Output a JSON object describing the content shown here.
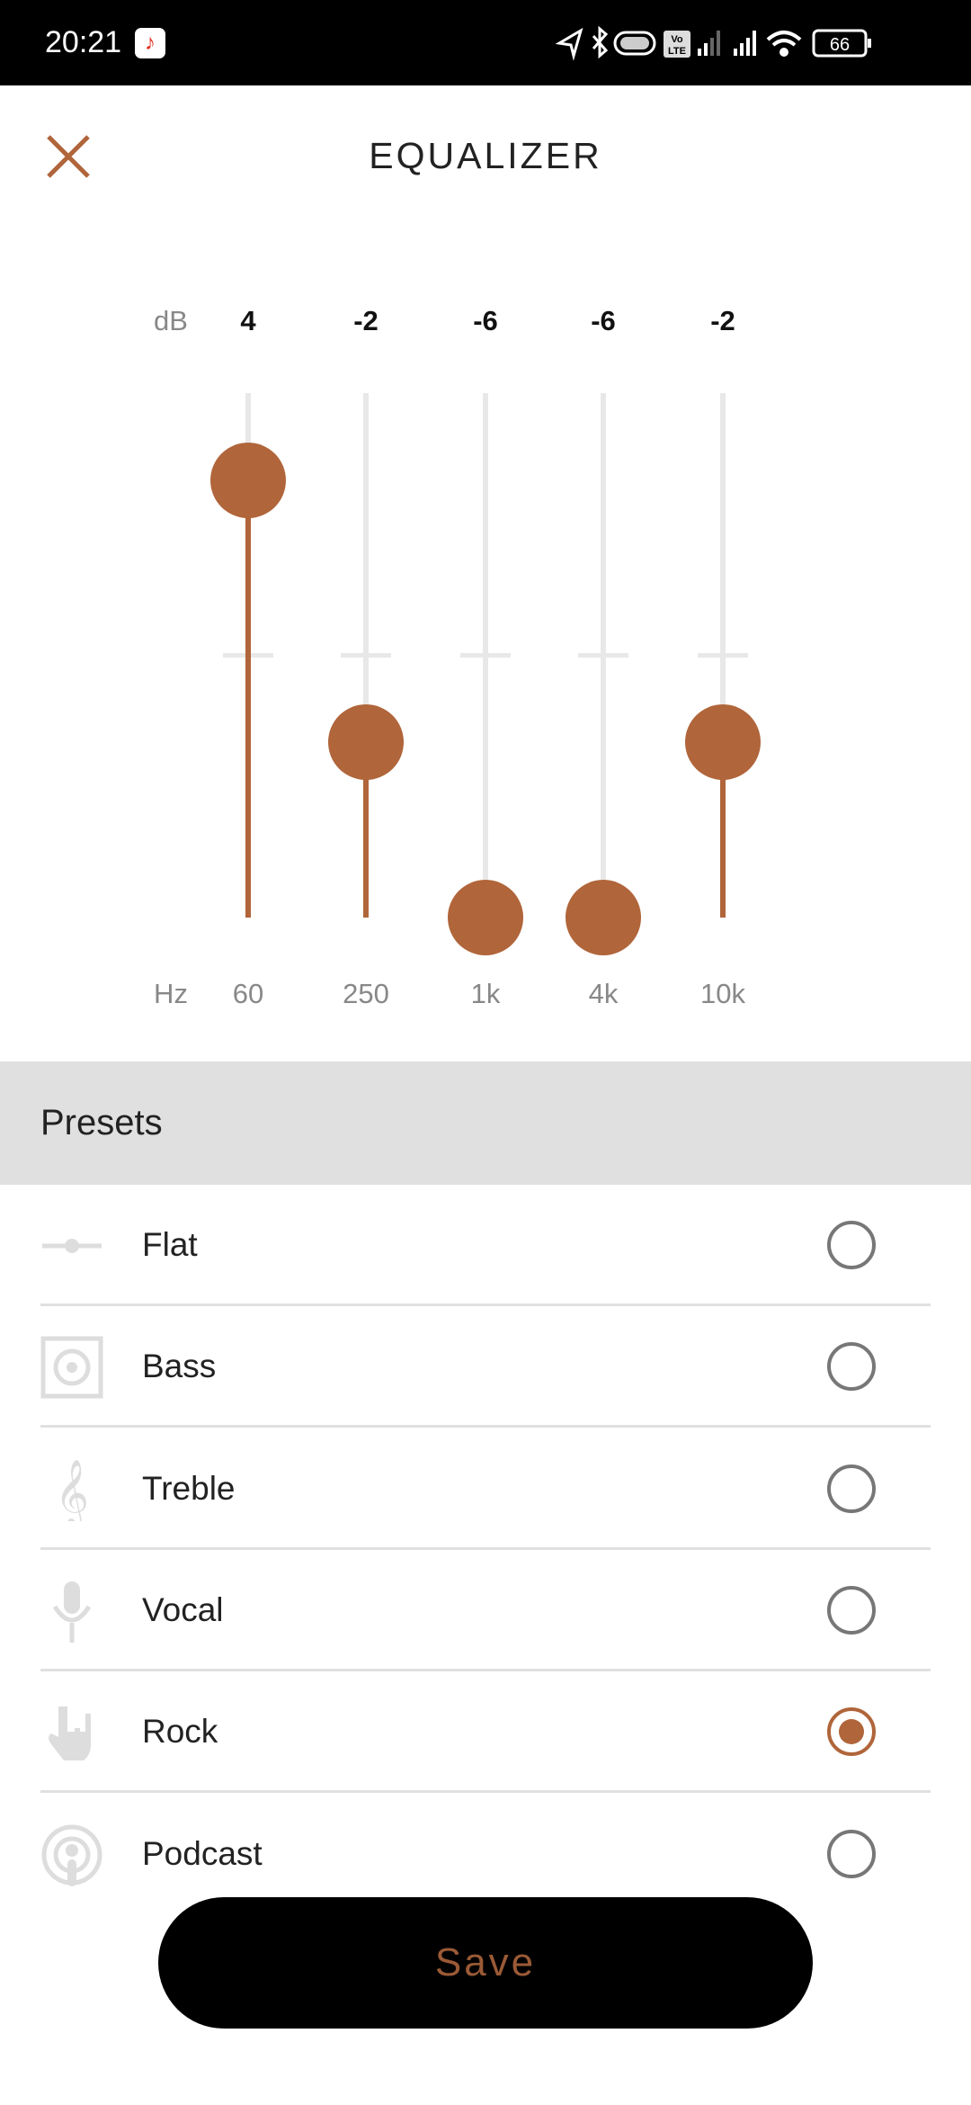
{
  "status_bar": {
    "time": "20:21",
    "battery": "66"
  },
  "header": {
    "title": "EQUALIZER"
  },
  "equalizer": {
    "db_unit": "dB",
    "hz_unit": "Hz",
    "range_db": [
      -6,
      6
    ],
    "accent": "#b0653a",
    "bands": [
      {
        "freq": "60",
        "gain": 4,
        "gain_label": "4"
      },
      {
        "freq": "250",
        "gain": -2,
        "gain_label": "-2"
      },
      {
        "freq": "1k",
        "gain": -6,
        "gain_label": "-6"
      },
      {
        "freq": "4k",
        "gain": -6,
        "gain_label": "-6"
      },
      {
        "freq": "10k",
        "gain": -2,
        "gain_label": "-2"
      }
    ]
  },
  "presets": {
    "title": "Presets",
    "selected": "Rock",
    "items": [
      {
        "label": "Flat",
        "icon": "slider-icon"
      },
      {
        "label": "Bass",
        "icon": "speaker-icon"
      },
      {
        "label": "Treble",
        "icon": "treble-clef-icon"
      },
      {
        "label": "Vocal",
        "icon": "microphone-icon"
      },
      {
        "label": "Rock",
        "icon": "rock-hand-icon"
      },
      {
        "label": "Podcast",
        "icon": "podcast-icon"
      }
    ]
  },
  "save_label": "Save"
}
